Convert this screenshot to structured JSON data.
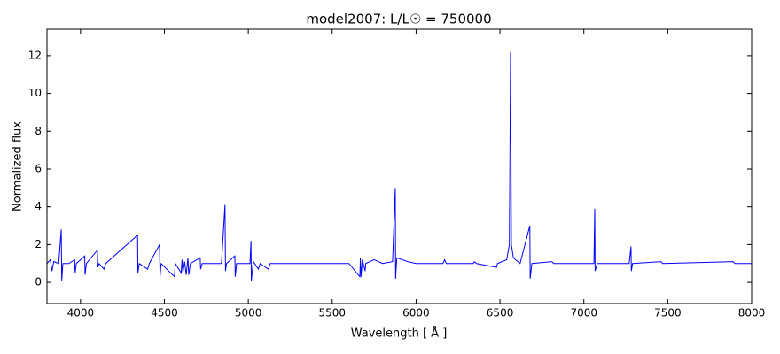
{
  "chart_data": {
    "type": "line",
    "title": "model2007: L/L☉ = 750000",
    "x_label": "Wavelength [ Å ]",
    "y_label": "Normalized flux",
    "xlim": [
      3800,
      8000
    ],
    "xticks": [
      4000,
      4500,
      5000,
      5500,
      6000,
      6500,
      7000,
      7500,
      8000
    ],
    "ylim": [
      -1.12,
      13.4
    ],
    "yticks": [
      0,
      2,
      4,
      6,
      8,
      10,
      12
    ],
    "series": [
      {
        "color": "#0000ff",
        "x": [
          3800,
          3820,
          3830,
          3840,
          3870,
          3885,
          3888,
          3895,
          3930,
          3965,
          3968,
          3975,
          4025,
          4027,
          4035,
          4100,
          4103,
          4110,
          4140,
          4150,
          4340,
          4342,
          4350,
          4400,
          4410,
          4471,
          4474,
          4480,
          4560,
          4565,
          4600,
          4605,
          4610,
          4620,
          4630,
          4640,
          4645,
          4655,
          4713,
          4716,
          4725,
          4840,
          4861,
          4864,
          4870,
          4920,
          4922,
          4930,
          5010,
          5016,
          5018,
          5030,
          5060,
          5070,
          5120,
          5130,
          5200,
          5600,
          5665,
          5668,
          5672,
          5680,
          5696,
          5700,
          5750,
          5800,
          5860,
          5876,
          5878,
          5885,
          5950,
          6000,
          6160,
          6170,
          6180,
          6340,
          6347,
          6360,
          6480,
          6485,
          6540,
          6556,
          6563,
          6568,
          6580,
          6620,
          6678,
          6680,
          6690,
          6810,
          6820,
          7060,
          7065,
          7067,
          7080,
          7270,
          7281,
          7283,
          7290,
          7460,
          7470,
          7890,
          7900,
          8000
        ],
        "values": [
          1.0,
          1.2,
          0.6,
          1.1,
          1.0,
          2.8,
          0.1,
          1.0,
          1.0,
          1.2,
          0.5,
          1.0,
          1.4,
          0.4,
          1.0,
          1.7,
          0.8,
          1.0,
          0.7,
          1.0,
          2.5,
          0.5,
          1.0,
          0.7,
          1.0,
          2.0,
          0.3,
          1.0,
          0.3,
          1.0,
          0.5,
          1.2,
          0.5,
          1.1,
          0.4,
          1.3,
          0.4,
          1.0,
          1.3,
          0.7,
          1.0,
          1.0,
          4.1,
          0.6,
          1.0,
          1.4,
          0.3,
          1.0,
          1.0,
          2.2,
          0.1,
          1.1,
          0.7,
          1.0,
          0.7,
          1.0,
          1.0,
          1.0,
          0.3,
          1.3,
          0.3,
          1.2,
          0.6,
          1.0,
          1.2,
          1.0,
          1.1,
          5.0,
          0.2,
          1.3,
          1.1,
          1.0,
          1.0,
          1.2,
          1.0,
          1.0,
          1.1,
          1.0,
          0.8,
          1.0,
          1.2,
          2.0,
          12.2,
          2.0,
          1.3,
          1.0,
          3.0,
          0.2,
          1.0,
          1.1,
          1.0,
          1.0,
          3.9,
          0.6,
          1.0,
          1.0,
          1.9,
          0.6,
          1.0,
          1.1,
          1.0,
          1.1,
          1.0,
          1.0
        ]
      }
    ]
  }
}
